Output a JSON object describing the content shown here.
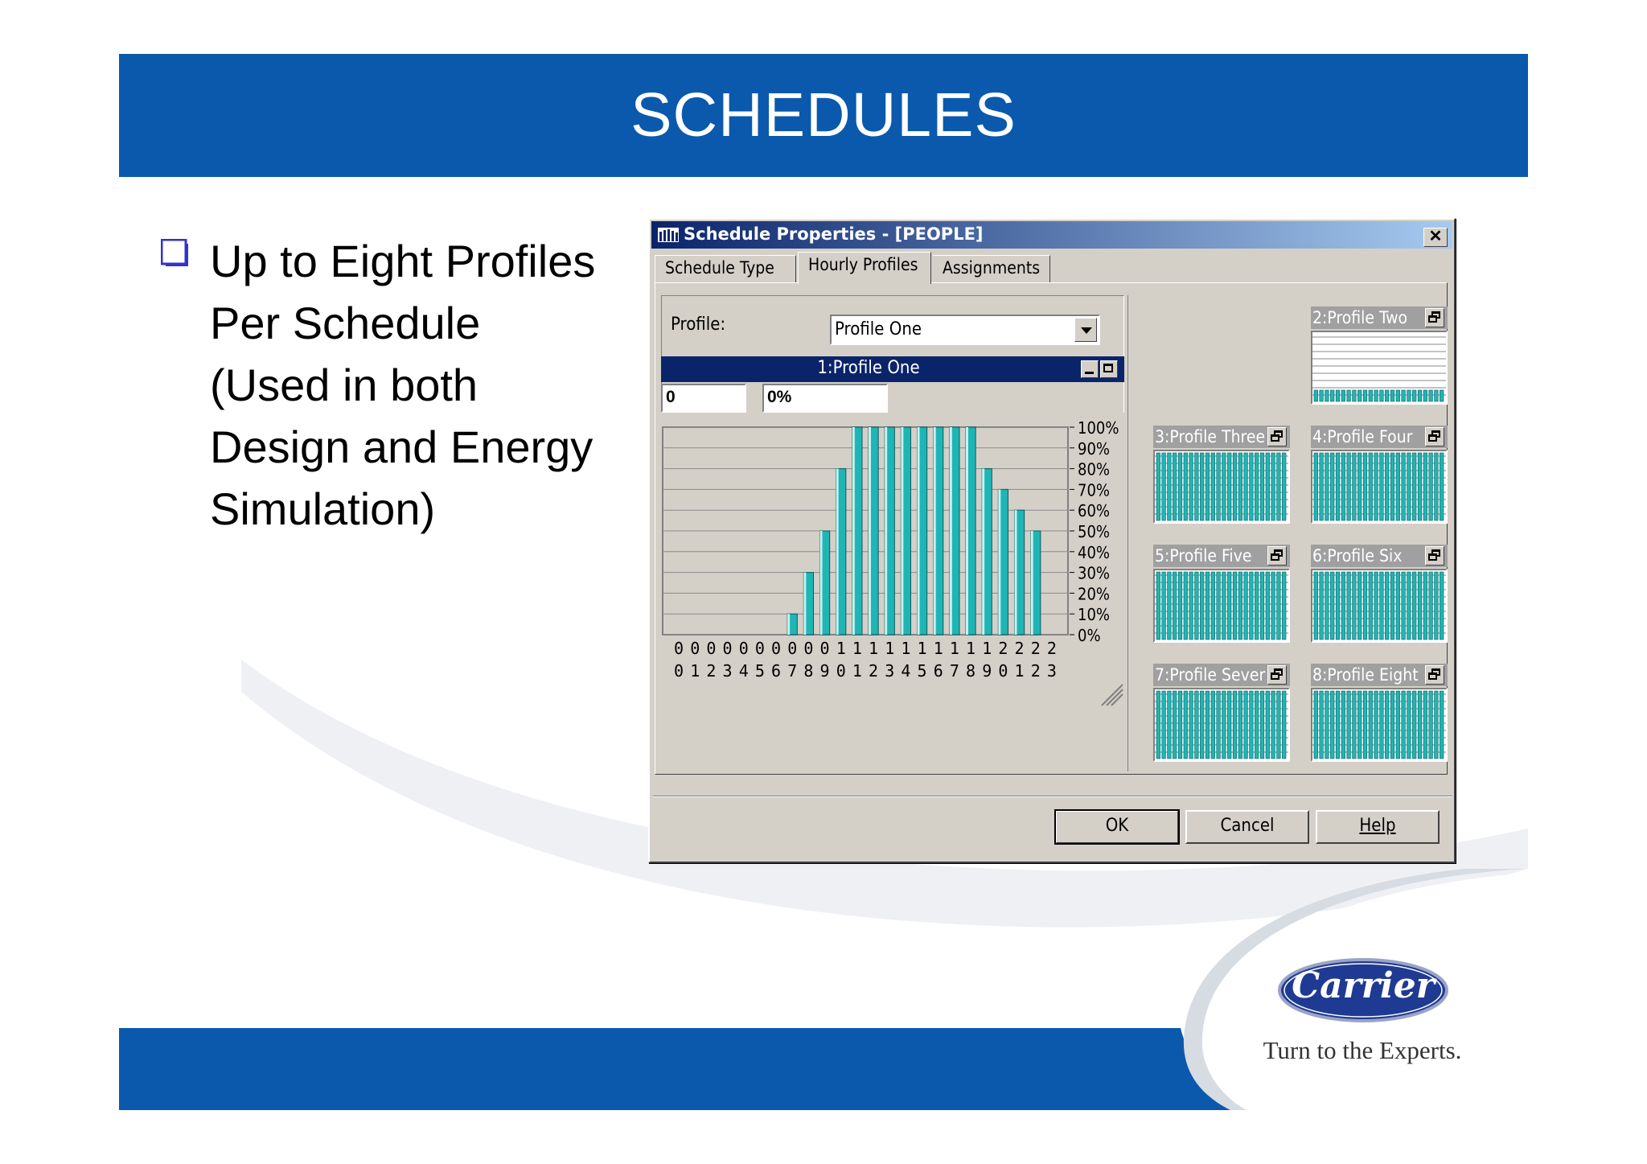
{
  "slide": {
    "title": "SCHEDULES",
    "bullet_lines": [
      "Up to Eight Profiles",
      "Per Schedule",
      "(Used in both",
      "Design and Energy",
      "Simulation)"
    ]
  },
  "dialog": {
    "title": "Schedule Properties - [PEOPLE]",
    "tabs": [
      "Schedule Type",
      "Hourly Profiles",
      "Assignments"
    ],
    "active_tab": "Hourly Profiles",
    "profile_label": "Profile:",
    "profile_value": "Profile One",
    "graph_title": "1:Profile One",
    "hour_field_value": "0",
    "value_field_value": "0%",
    "thumbnails": [
      {
        "label": "2:Profile Two"
      },
      {
        "label": "3:Profile Three"
      },
      {
        "label": "4:Profile Four"
      },
      {
        "label": "5:Profile Five"
      },
      {
        "label": "6:Profile Six"
      },
      {
        "label": "7:Profile Sever"
      },
      {
        "label": "8:Profile Eight"
      }
    ],
    "buttons": {
      "ok": "OK",
      "cancel": "Cancel",
      "help": "Help"
    }
  },
  "chart_data": {
    "type": "bar",
    "categories": [
      "00",
      "01",
      "02",
      "03",
      "04",
      "05",
      "06",
      "07",
      "08",
      "09",
      "10",
      "11",
      "12",
      "13",
      "14",
      "15",
      "16",
      "17",
      "18",
      "19",
      "20",
      "21",
      "22",
      "23"
    ],
    "series": [
      {
        "values": [
          0,
          0,
          0,
          0,
          0,
          0,
          0,
          10,
          30,
          50,
          80,
          100,
          100,
          100,
          100,
          100,
          100,
          100,
          100,
          80,
          70,
          60,
          50,
          0
        ]
      }
    ],
    "ylim": [
      0,
      100
    ],
    "yticks": [
      "100%",
      "90%",
      "80%",
      "70%",
      "60%",
      "50%",
      "40%",
      "30%",
      "20%",
      "10%",
      "0%"
    ],
    "grid": true,
    "bar_color": "#1fb5b5"
  },
  "logo": {
    "brand": "Carrier",
    "tagline": "Turn to the Experts.",
    "brand_color": "#1f3a93"
  },
  "colors": {
    "header": "#0a59ad",
    "bullet": "#3333cc",
    "titlebar": "#0a246a"
  }
}
